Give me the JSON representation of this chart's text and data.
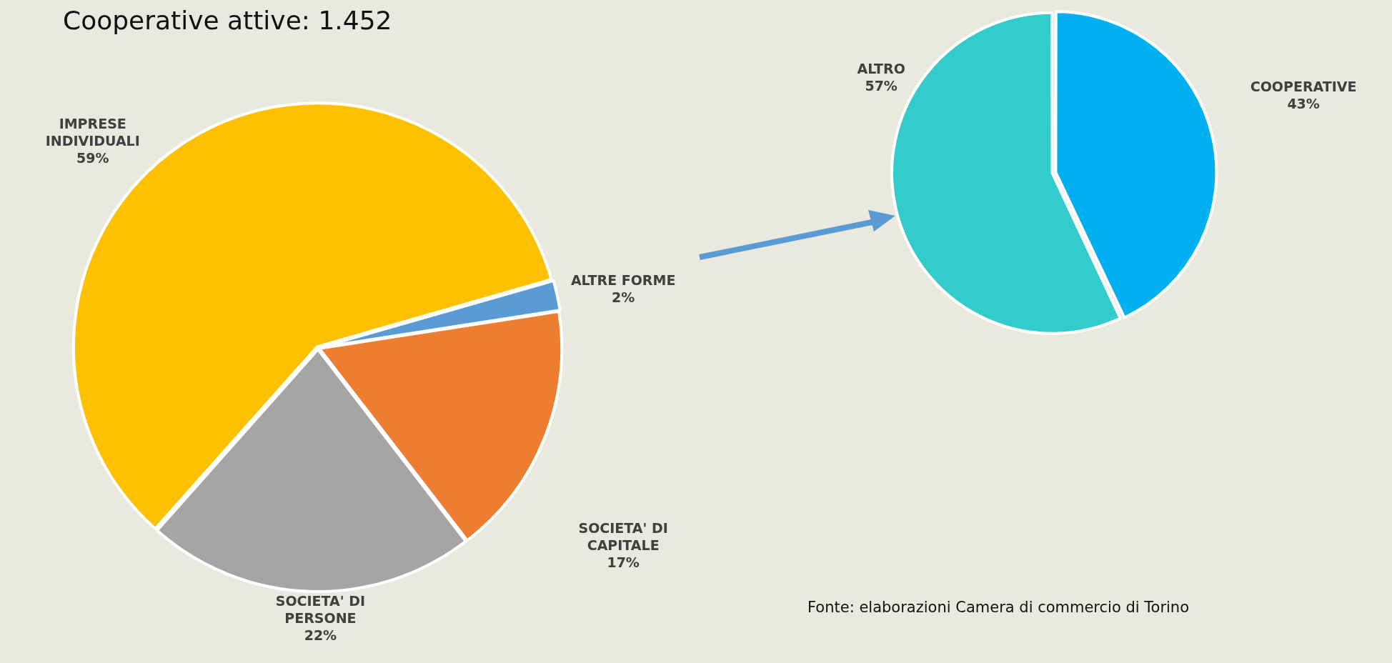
{
  "chart_data": [
    {
      "type": "pie",
      "title": "Cooperative attive: 1.452",
      "categories": [
        "ALTRE FORME",
        "SOCIETA' DI CAPITALE",
        "SOCIETA' DI PERSONE",
        "IMPRESE INDIVIDUALI"
      ],
      "values": [
        2,
        17,
        22,
        59
      ],
      "colors": [
        "#5b9bd5",
        "#ed7d31",
        "#a5a5a5",
        "#ffc000"
      ],
      "value_labels": [
        "2%",
        "17%",
        "22%",
        "59%"
      ],
      "legend": false
    },
    {
      "type": "pie",
      "categories": [
        "COOPERATIVE",
        "ALTRO"
      ],
      "values": [
        43,
        57
      ],
      "colors": [
        "#00b0f0",
        "#33cccc"
      ],
      "value_labels": [
        "43%",
        "57%"
      ],
      "legend": false,
      "annotations": [
        "Fonte: elaborazioni Camera di commercio di Torino"
      ]
    }
  ]
}
